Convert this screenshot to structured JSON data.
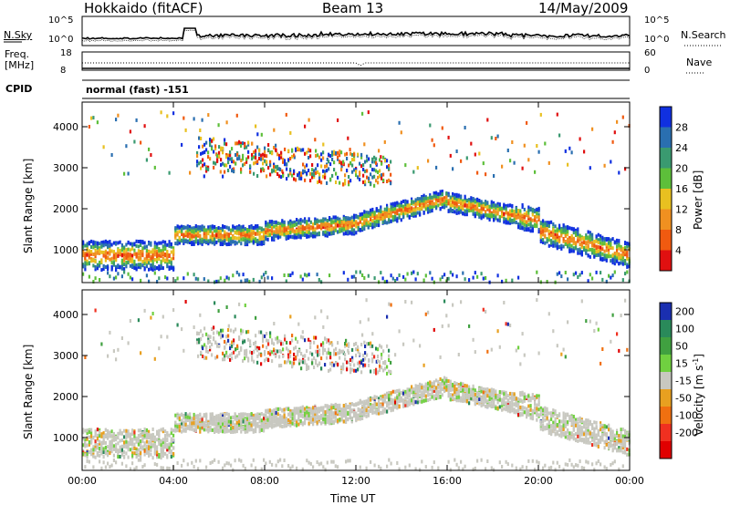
{
  "header": {
    "station": "Hokkaido (fitACF)",
    "beam": "Beam 13",
    "date": "14/May/2009"
  },
  "noise_panel": {
    "left_label": "N.Sky",
    "right_label": "N.Search",
    "tick_top": "10^5",
    "tick_bottom": "10^0"
  },
  "freq_panel": {
    "left_label_1": "Freq.",
    "left_label_2": "[MHz]",
    "left_tick_top": "18",
    "left_tick_bottom": "8",
    "right_label": "Nave",
    "right_tick_top": "60",
    "right_tick_bottom": "0"
  },
  "cpid": {
    "label": "CPID",
    "value": "normal (fast) -151"
  },
  "chart_data": [
    {
      "type": "heatmap",
      "name": "power",
      "ylabel": "Slant Range [km]",
      "ylim": [
        200,
        4600
      ],
      "yticks": [
        1000,
        2000,
        3000,
        4000
      ],
      "xlim": [
        0,
        24
      ],
      "xticks": [
        "00:00",
        "04:00",
        "08:00",
        "12:00",
        "16:00",
        "20:00",
        "00:00"
      ],
      "colorbar_label": "Power [dB]",
      "colorbar_ticks": [
        "4",
        "8",
        "12",
        "16",
        "20",
        "24",
        "28"
      ],
      "colorbar_colors": [
        "#1030e0",
        "#2a6fb0",
        "#3a9a70",
        "#5dbf3a",
        "#e8c020",
        "#f09020",
        "#f05a10",
        "#e01010"
      ]
    },
    {
      "type": "heatmap",
      "name": "velocity",
      "ylabel": "Slant Range [km]",
      "ylim": [
        200,
        4600
      ],
      "yticks": [
        1000,
        2000,
        3000,
        4000
      ],
      "xlim": [
        0,
        24
      ],
      "xticks": [
        "00:00",
        "04:00",
        "08:00",
        "12:00",
        "16:00",
        "20:00",
        "00:00"
      ],
      "xlabel": "Time UT",
      "colorbar_label": "Velocity [m s",
      "colorbar_label_sup": "-1",
      "colorbar_label_end": "]",
      "colorbar_ticks": [
        "200",
        "100",
        "50",
        "15",
        "-15",
        "-50",
        "-100",
        "-200"
      ],
      "colorbar_colors": [
        "#1a2fb0",
        "#2a8a5a",
        "#40a040",
        "#70d040",
        "#c8c8c0",
        "#e8a020",
        "#f07010",
        "#f03020",
        "#e00000"
      ]
    }
  ]
}
